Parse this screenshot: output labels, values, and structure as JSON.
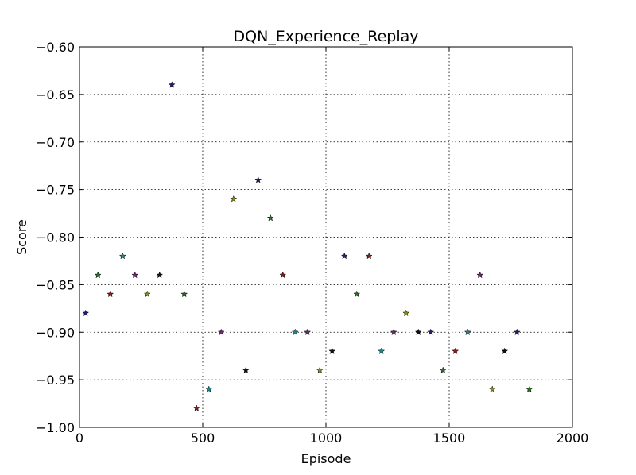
{
  "chart_data": {
    "type": "scatter",
    "title": "DQN_Experience_Replay",
    "xlabel": "Episode",
    "ylabel": "Score",
    "xlim": [
      0,
      2000
    ],
    "ylim": [
      -1.0,
      -0.6
    ],
    "grid": true,
    "xticks": [
      0,
      500,
      1000,
      1500,
      2000
    ],
    "xtick_labels": [
      "0",
      "500",
      "1000",
      "1500",
      "2000"
    ],
    "yticks": [
      -0.6,
      -0.65,
      -0.7,
      -0.75,
      -0.8,
      -0.85,
      -0.9,
      -0.95,
      -1.0
    ],
    "ytick_labels": [
      "−0.60",
      "−0.65",
      "−0.70",
      "−0.75",
      "−0.80",
      "−0.85",
      "−0.90",
      "−0.95",
      "−1.00"
    ],
    "marker": "star",
    "points": [
      {
        "x": 25,
        "y": -0.88,
        "color": "#1f1f7a"
      },
      {
        "x": 75,
        "y": -0.84,
        "color": "#2a6e2a"
      },
      {
        "x": 125,
        "y": -0.86,
        "color": "#8b1a1a"
      },
      {
        "x": 175,
        "y": -0.82,
        "color": "#1a8b8b"
      },
      {
        "x": 225,
        "y": -0.84,
        "color": "#7a1f7a"
      },
      {
        "x": 275,
        "y": -0.86,
        "color": "#8b8b1a"
      },
      {
        "x": 325,
        "y": -0.84,
        "color": "#111111"
      },
      {
        "x": 375,
        "y": -0.64,
        "color": "#1f1f7a"
      },
      {
        "x": 425,
        "y": -0.86,
        "color": "#2a6e2a"
      },
      {
        "x": 475,
        "y": -0.98,
        "color": "#8b1a1a"
      },
      {
        "x": 525,
        "y": -0.96,
        "color": "#1a8b8b"
      },
      {
        "x": 575,
        "y": -0.9,
        "color": "#7a1f7a"
      },
      {
        "x": 625,
        "y": -0.76,
        "color": "#8b8b1a"
      },
      {
        "x": 675,
        "y": -0.94,
        "color": "#111111"
      },
      {
        "x": 725,
        "y": -0.74,
        "color": "#1f1f7a"
      },
      {
        "x": 775,
        "y": -0.78,
        "color": "#2a6e2a"
      },
      {
        "x": 825,
        "y": -0.84,
        "color": "#8b1a1a"
      },
      {
        "x": 875,
        "y": -0.9,
        "color": "#1a8b8b"
      },
      {
        "x": 925,
        "y": -0.9,
        "color": "#7a1f7a"
      },
      {
        "x": 975,
        "y": -0.94,
        "color": "#8b8b1a"
      },
      {
        "x": 1025,
        "y": -0.92,
        "color": "#111111"
      },
      {
        "x": 1075,
        "y": -0.82,
        "color": "#1f1f7a"
      },
      {
        "x": 1125,
        "y": -0.86,
        "color": "#2a6e2a"
      },
      {
        "x": 1175,
        "y": -0.82,
        "color": "#8b1a1a"
      },
      {
        "x": 1225,
        "y": -0.92,
        "color": "#1a8b8b"
      },
      {
        "x": 1275,
        "y": -0.9,
        "color": "#7a1f7a"
      },
      {
        "x": 1325,
        "y": -0.88,
        "color": "#8b8b1a"
      },
      {
        "x": 1375,
        "y": -0.9,
        "color": "#111111"
      },
      {
        "x": 1425,
        "y": -0.9,
        "color": "#1f1f7a"
      },
      {
        "x": 1475,
        "y": -0.94,
        "color": "#2a6e2a"
      },
      {
        "x": 1525,
        "y": -0.92,
        "color": "#8b1a1a"
      },
      {
        "x": 1575,
        "y": -0.9,
        "color": "#1a8b8b"
      },
      {
        "x": 1625,
        "y": -0.84,
        "color": "#7a1f7a"
      },
      {
        "x": 1675,
        "y": -0.96,
        "color": "#8b8b1a"
      },
      {
        "x": 1725,
        "y": -0.92,
        "color": "#111111"
      },
      {
        "x": 1775,
        "y": -0.9,
        "color": "#1f1f7a"
      },
      {
        "x": 1825,
        "y": -0.96,
        "color": "#2a6e2a"
      }
    ]
  }
}
